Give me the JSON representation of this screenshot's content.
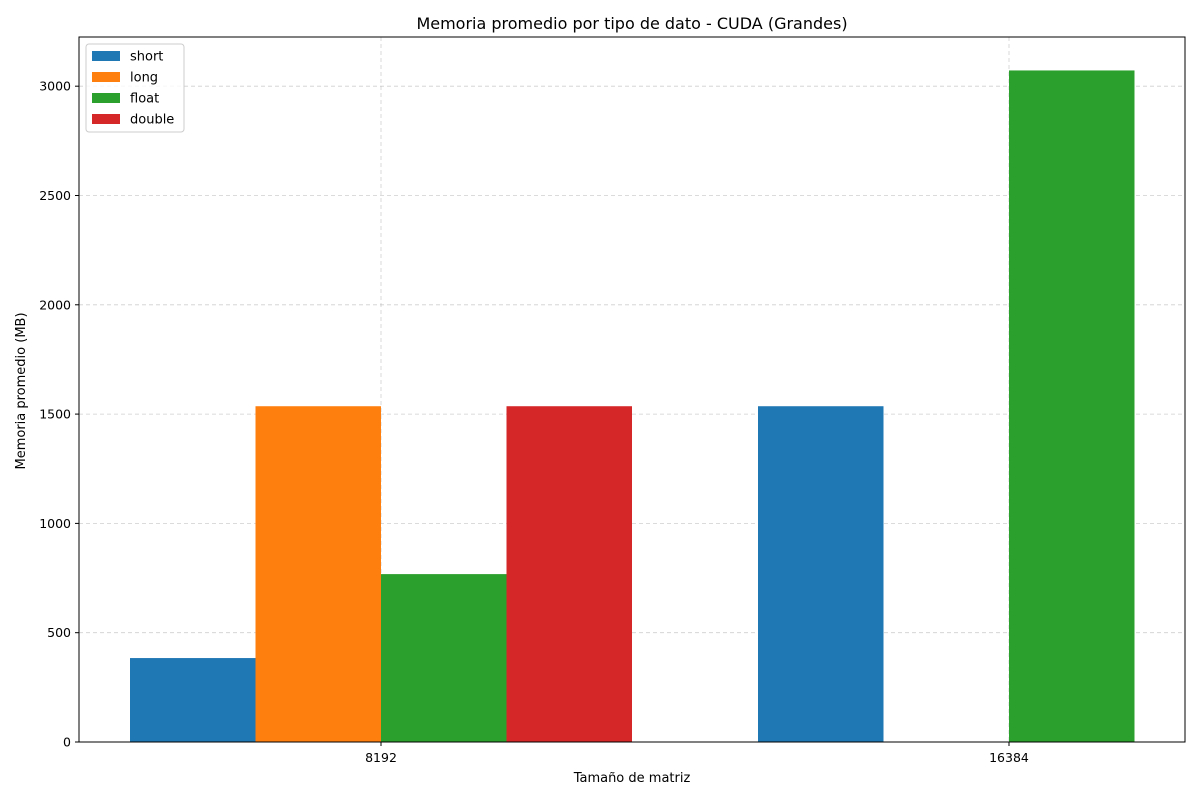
{
  "chart_data": {
    "type": "bar",
    "title": "Memoria promedio por tipo de dato - CUDA (Grandes)",
    "xlabel": "Tamaño de matriz",
    "ylabel": "Memoria promedio (MB)",
    "categories": [
      "8192",
      "16384"
    ],
    "yticks": [
      0,
      500,
      1000,
      1500,
      2000,
      2500,
      3000
    ],
    "ylim": [
      0,
      3225
    ],
    "grid": true,
    "legend_position": "upper-left",
    "series": [
      {
        "name": "short",
        "color": "#1f77b4",
        "values": [
          384,
          1536
        ]
      },
      {
        "name": "long",
        "color": "#ff7f0e",
        "values": [
          1536,
          0
        ]
      },
      {
        "name": "float",
        "color": "#2ca02c",
        "values": [
          768,
          3072
        ]
      },
      {
        "name": "double",
        "color": "#d62728",
        "values": [
          1536,
          0
        ]
      }
    ]
  }
}
